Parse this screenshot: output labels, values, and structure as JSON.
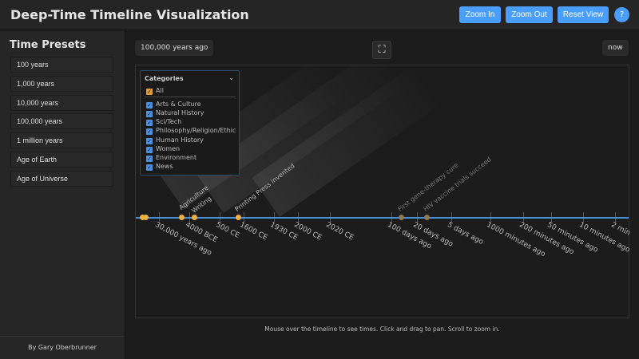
{
  "header": {
    "title": "Deep-Time Timeline Visualization",
    "zoom_in": "Zoom In",
    "zoom_out": "Zoom Out",
    "reset": "Reset View",
    "help": "?"
  },
  "sidebar": {
    "title": "Time Presets",
    "presets": [
      "100 years",
      "1,000 years",
      "10,000 years",
      "100,000 years",
      "1 million years",
      "Age of Earth",
      "Age of Universe"
    ],
    "credit": "By Gary Oberbrunner"
  },
  "view": {
    "start_label": "100,000 years ago",
    "end_label": "now",
    "fullscreen_icon": "expand-icon"
  },
  "categories": {
    "title": "Categories",
    "all": "All",
    "items": [
      "Arts & Culture",
      "Natural History",
      "Sci/Tech",
      "Philosophy/Religion/Ethic",
      "Human History",
      "Women",
      "Environment",
      "News"
    ]
  },
  "axis": {
    "ticks": [
      "30,000 years ago",
      "4000 BCE",
      "500 CE",
      "1600 CE",
      "1930 CE",
      "2000 CE",
      "2020 CE",
      "100 days ago",
      "20 days ago",
      "5 days ago",
      "1000 minutes ago",
      "200 minutes ago",
      "50 minutes ago",
      "10 minutes ago",
      "2 min"
    ]
  },
  "events": [
    "Agriculture",
    "Writing",
    "Printing Press invented",
    "First gene-therapy cure",
    "HIV vaccine trials succeed"
  ],
  "colors": {
    "accent": "#4a9eff",
    "event": "#f0b040",
    "axis": "#4a90d9"
  },
  "hint": "Mouse over the timeline to see times. Click and drag to pan. Scroll to zoom in."
}
